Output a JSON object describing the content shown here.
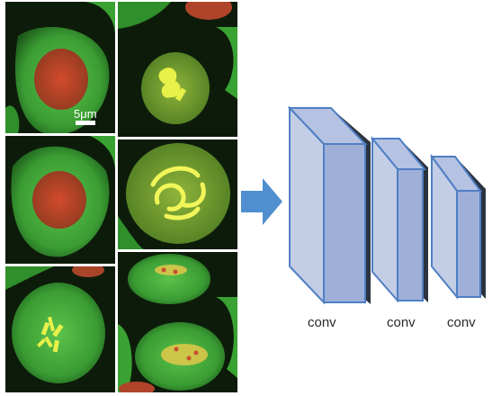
{
  "scale_bar": {
    "label": "5μm"
  },
  "layers": [
    {
      "label": "conv"
    },
    {
      "label": "conv"
    },
    {
      "label": "conv"
    }
  ],
  "colors": {
    "cell_cytoplasm": "#3fae3a",
    "nucleus": "#c8402a",
    "chromosomes": "#e8f04a",
    "background": "#0c1a08",
    "arrow": "#4f8fd0",
    "block_front": "#c3cde6",
    "block_side": "#9fb0d8",
    "block_edge": "#4f7fc4",
    "block_shadow": "#2b3340"
  }
}
